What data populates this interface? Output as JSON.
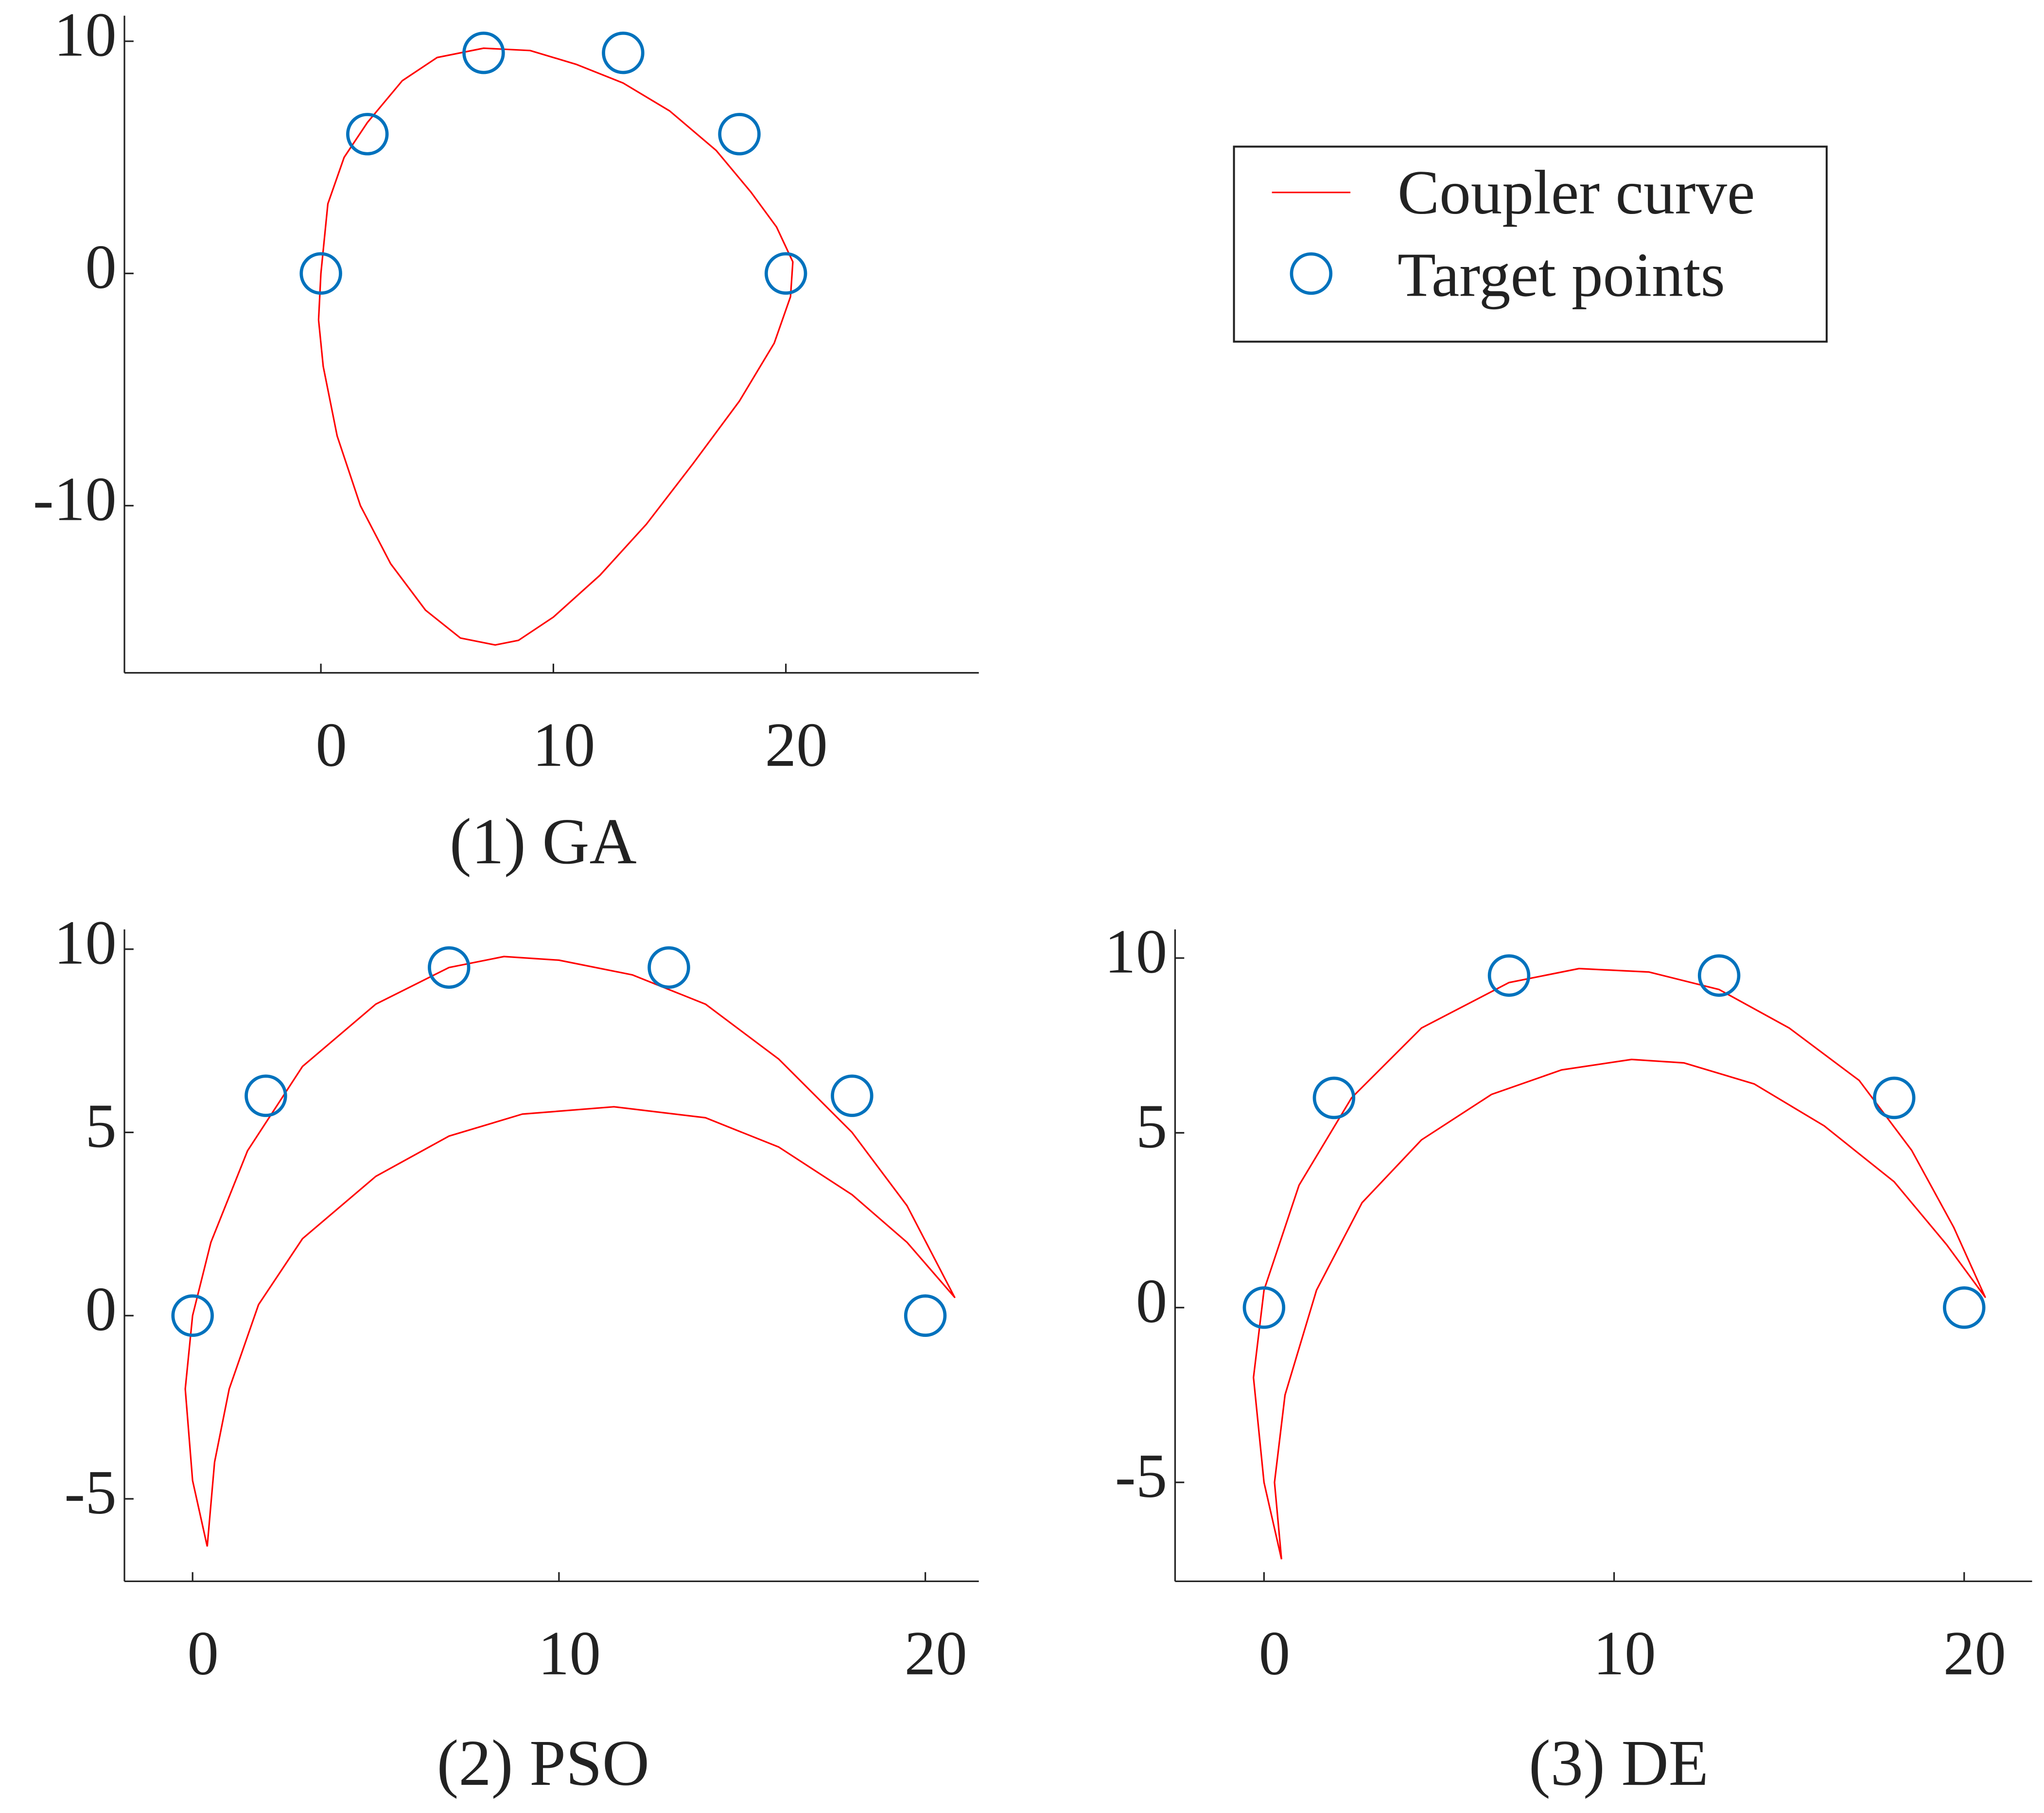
{
  "chart_data": [
    {
      "type": "line",
      "caption": "(1) GA",
      "xlim": [
        -8.45,
        28.3
      ],
      "ylim": [
        -17.2,
        11.1
      ],
      "xticks": [
        0,
        10,
        20
      ],
      "yticks": [
        -10,
        0,
        10
      ],
      "series": [
        {
          "name": "Coupler curve",
          "color": "#ff0000",
          "x": [
            -0.1,
            0,
            0.3,
            1,
            2,
            3.5,
            5,
            7,
            9,
            11,
            13,
            15,
            17,
            18.5,
            19.6,
            20.3,
            20.2,
            19.5,
            18,
            16,
            14,
            12,
            10,
            8.5,
            7.5,
            6,
            4.5,
            3,
            1.7,
            0.7,
            0.1,
            -0.1
          ],
          "values": [
            -2,
            0,
            3,
            5,
            6.5,
            8.3,
            9.3,
            9.7,
            9.6,
            9,
            8.2,
            7,
            5.3,
            3.5,
            2,
            0.5,
            -1,
            -3,
            -5.5,
            -8.2,
            -10.8,
            -13,
            -14.8,
            -15.8,
            -16,
            -15.7,
            -14.5,
            -12.5,
            -10,
            -7,
            -4,
            -2
          ]
        },
        {
          "name": "Target points",
          "color": "#0072bd",
          "marker": "circle",
          "x": [
            0,
            2,
            7,
            13,
            18,
            20
          ],
          "values": [
            0,
            6,
            9.5,
            9.5,
            6,
            0
          ]
        }
      ]
    },
    {
      "type": "line",
      "caption": "(2) PSO",
      "xlim": [
        -1.86,
        21.46
      ],
      "ylim": [
        -7.25,
        10.54
      ],
      "xticks": [
        0,
        10,
        20
      ],
      "yticks": [
        -5,
        0,
        5,
        10
      ],
      "series": [
        {
          "color": "#ff0000",
          "x": [
            0.4,
            0,
            -0.2,
            0,
            0.5,
            1.5,
            3,
            5,
            7,
            8.5,
            10,
            12,
            14,
            16,
            18,
            19.5,
            20.8,
            19.5,
            18,
            16,
            14,
            11.5,
            9,
            7,
            5,
            3,
            1.8,
            1,
            0.6,
            0.4
          ],
          "values": [
            -6.3,
            -4.5,
            -2,
            0,
            2,
            4.5,
            6.8,
            8.5,
            9.5,
            9.8,
            9.7,
            9.3,
            8.5,
            7,
            5,
            3,
            0.5,
            2,
            3.3,
            4.6,
            5.4,
            5.7,
            5.5,
            4.9,
            3.8,
            2.1,
            0.3,
            -2,
            -4,
            -6.3
          ]
        },
        {
          "color": "#0072bd",
          "marker": "circle",
          "x": [
            0,
            2,
            7,
            13,
            18,
            20
          ],
          "values": [
            0,
            6,
            9.5,
            9.5,
            6,
            0
          ]
        }
      ]
    },
    {
      "type": "line",
      "caption": "(3) DE",
      "xlim": [
        -2.54,
        21.94
      ],
      "ylim": [
        -7.83,
        10.82
      ],
      "xticks": [
        0,
        10,
        20
      ],
      "yticks": [
        -5,
        0,
        5,
        10
      ],
      "series": [
        {
          "color": "#ff0000",
          "x": [
            0.5,
            0,
            -0.3,
            0,
            1,
            2.5,
            4.5,
            7,
            9,
            11,
            13,
            15,
            17,
            18.5,
            19.7,
            20.6,
            19.5,
            18,
            16,
            14,
            12,
            10.5,
            8.5,
            6.5,
            4.5,
            2.8,
            1.5,
            0.6,
            0.3,
            0.5
          ],
          "values": [
            -7.2,
            -5,
            -2,
            0.5,
            3.5,
            6,
            8,
            9.3,
            9.7,
            9.6,
            9.1,
            8,
            6.5,
            4.5,
            2.3,
            0.3,
            1.8,
            3.6,
            5.2,
            6.4,
            7,
            7.1,
            6.8,
            6.1,
            4.8,
            3,
            0.5,
            -2.5,
            -5,
            -7.2
          ]
        },
        {
          "color": "#0072bd",
          "marker": "circle",
          "x": [
            0,
            2,
            7,
            13,
            18,
            20
          ],
          "values": [
            0,
            6,
            9.5,
            9.5,
            6,
            0
          ]
        }
      ]
    }
  ]
}
